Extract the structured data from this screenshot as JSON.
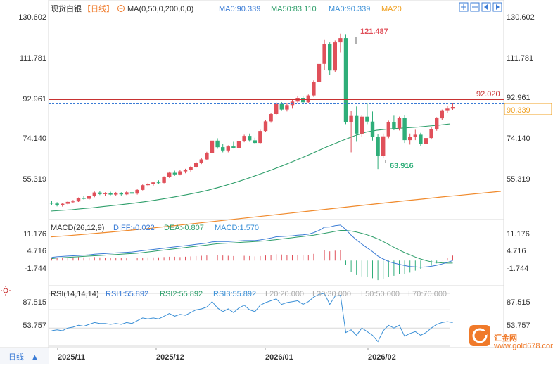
{
  "header": {
    "symbol": "现货白银",
    "period_tag": "【日线】",
    "ma_spec": "MA(0,50,0,200,0,0)",
    "ma_items": [
      "MA0:90.339",
      "MA50:83.110",
      "MA0:90.339",
      "MA20"
    ]
  },
  "toolbar_icons": [
    "zoom-in-icon",
    "zoom-out-icon",
    "scroll-left-icon",
    "scroll-right-icon"
  ],
  "price_axis": [
    "130.602",
    "111.781",
    "92.961",
    "74.140",
    "55.319"
  ],
  "price_marks": {
    "high": "121.487",
    "low": "63.916",
    "ref_line": "92.020",
    "current": "90.339"
  },
  "macd": {
    "title": "MACD(26,12,9)",
    "diff": "DIFF:-0.022",
    "dea": "DEA:-0.807",
    "macd": "MACD:1.570",
    "axis": [
      "11.176",
      "4.716",
      "-1.744"
    ]
  },
  "rsi": {
    "title": "RSI(14,14,14)",
    "items": [
      "RSI1:55.892",
      "RSI2:55.892",
      "RSI3:55.892",
      "L20:20.000",
      "L30:30.000",
      "L50:50.000",
      "L70:70.000"
    ],
    "axis": [
      "87.515",
      "53.757"
    ]
  },
  "time_axis": [
    "2025/11",
    "2025/12",
    "2026/01",
    "2026/02"
  ],
  "period_selector": "日线",
  "period_arrow": "▲",
  "watermark_text": "汇金网",
  "watermark_sub": "www.gold678.com",
  "colors": {
    "up": "#e0505a",
    "down": "#2fae79",
    "ma50": "#2e9e6a",
    "ma200": "#f08a2c",
    "ref_line": "#c83232",
    "current": "#f0a020",
    "diff": "#3a7bd5",
    "dea": "#2e9e6a",
    "rsi": "#3a8fd6",
    "brand": "#f07a2a"
  },
  "chart_data": {
    "type": "candlestick",
    "candles": [
      [
        49.5,
        50.3,
        48.6,
        49.2
      ],
      [
        49.2,
        49.8,
        48.0,
        48.5
      ],
      [
        48.5,
        49.4,
        47.9,
        49.1
      ],
      [
        49.1,
        50.2,
        48.8,
        49.9
      ],
      [
        49.9,
        50.7,
        49.3,
        50.1
      ],
      [
        50.1,
        51.8,
        49.9,
        51.5
      ],
      [
        51.5,
        52.4,
        50.9,
        51.2
      ],
      [
        51.2,
        52.6,
        50.8,
        52.3
      ],
      [
        52.3,
        54.3,
        51.9,
        53.9
      ],
      [
        53.9,
        54.5,
        52.8,
        53.2
      ],
      [
        53.2,
        54.0,
        52.5,
        53.6
      ],
      [
        53.6,
        54.2,
        52.7,
        53.0
      ],
      [
        53.0,
        54.1,
        52.4,
        53.5
      ],
      [
        53.5,
        54.0,
        52.6,
        53.1
      ],
      [
        53.1,
        54.4,
        52.8,
        54.0
      ],
      [
        54.0,
        54.6,
        53.2,
        53.4
      ],
      [
        53.4,
        55.3,
        53.0,
        55.0
      ],
      [
        55.0,
        57.3,
        54.8,
        57.0
      ],
      [
        57.0,
        58.0,
        56.4,
        57.6
      ],
      [
        57.6,
        58.5,
        56.8,
        58.2
      ],
      [
        58.2,
        59.1,
        57.6,
        58.0
      ],
      [
        58.0,
        60.8,
        57.8,
        60.5
      ],
      [
        60.5,
        62.8,
        60.1,
        62.3
      ],
      [
        62.3,
        63.2,
        61.0,
        61.6
      ],
      [
        61.6,
        63.4,
        61.2,
        62.9
      ],
      [
        62.9,
        64.0,
        62.1,
        63.4
      ],
      [
        63.4,
        65.2,
        62.8,
        64.8
      ],
      [
        64.8,
        67.0,
        64.4,
        66.5
      ],
      [
        66.5,
        68.5,
        66.0,
        68.0
      ],
      [
        68.0,
        71.2,
        67.6,
        70.8
      ],
      [
        70.8,
        76.8,
        70.2,
        76.0
      ],
      [
        76.0,
        77.0,
        72.5,
        73.2
      ],
      [
        73.2,
        74.5,
        71.0,
        71.8
      ],
      [
        71.8,
        74.0,
        71.0,
        73.5
      ],
      [
        73.5,
        75.5,
        72.6,
        72.9
      ],
      [
        72.9,
        76.4,
        72.4,
        75.8
      ],
      [
        75.8,
        78.5,
        75.3,
        78.0
      ],
      [
        78.0,
        79.0,
        75.5,
        76.1
      ],
      [
        76.1,
        77.2,
        74.6,
        75.0
      ],
      [
        75.0,
        80.6,
        74.8,
        80.1
      ],
      [
        80.1,
        84.8,
        79.8,
        84.2
      ],
      [
        84.2,
        87.8,
        83.6,
        87.3
      ],
      [
        87.3,
        92.3,
        86.8,
        91.6
      ],
      [
        91.6,
        92.4,
        88.6,
        89.2
      ],
      [
        89.2,
        91.8,
        88.4,
        91.1
      ],
      [
        91.1,
        93.3,
        89.6,
        92.6
      ],
      [
        92.6,
        94.8,
        91.8,
        94.2
      ],
      [
        94.2,
        95.0,
        91.5,
        92.3
      ],
      [
        92.3,
        95.6,
        92.0,
        95.2
      ],
      [
        95.2,
        101.6,
        94.6,
        101.0
      ],
      [
        101.0,
        109.2,
        100.5,
        108.6
      ],
      [
        108.6,
        118.8,
        106.0,
        117.2
      ],
      [
        117.2,
        117.8,
        104.0,
        105.8
      ],
      [
        105.8,
        118.6,
        105.2,
        117.8
      ],
      [
        117.8,
        121.5,
        113.5,
        119.6
      ],
      [
        119.6,
        121.0,
        83.0,
        84.0
      ],
      [
        84.0,
        88.5,
        71.0,
        86.5
      ],
      [
        86.5,
        90.5,
        75.5,
        79.0
      ],
      [
        79.0,
        87.0,
        77.5,
        86.2
      ],
      [
        86.2,
        92.0,
        83.0,
        84.1
      ],
      [
        84.1,
        88.4,
        76.0,
        77.5
      ],
      [
        77.5,
        78.6,
        63.9,
        69.5
      ],
      [
        69.5,
        79.0,
        68.5,
        77.8
      ],
      [
        77.8,
        84.5,
        77.0,
        83.7
      ],
      [
        83.7,
        86.6,
        80.4,
        81.2
      ],
      [
        81.2,
        86.2,
        80.3,
        85.6
      ],
      [
        85.6,
        86.7,
        75.0,
        76.2
      ],
      [
        76.2,
        79.0,
        74.3,
        77.6
      ],
      [
        77.6,
        80.6,
        76.2,
        78.5
      ],
      [
        78.5,
        79.3,
        73.6,
        74.7
      ],
      [
        74.7,
        77.8,
        74.0,
        77.1
      ],
      [
        77.1,
        81.6,
        76.5,
        81.0
      ],
      [
        81.0,
        86.0,
        80.2,
        85.5
      ],
      [
        85.5,
        89.2,
        84.8,
        88.6
      ],
      [
        88.6,
        90.6,
        87.6,
        89.6
      ],
      [
        89.6,
        91.8,
        89.0,
        90.3
      ]
    ],
    "ma50": [
      46.0,
      46.3,
      46.6,
      47.0,
      47.4,
      47.9,
      48.4,
      48.9,
      49.4,
      50.0,
      50.7,
      51.4,
      52.2,
      53.0,
      53.9,
      54.9,
      56.1,
      57.4,
      58.8,
      60.3,
      61.9,
      63.5,
      65.2,
      67.0,
      68.9,
      70.8,
      72.8,
      74.7,
      76.5,
      78.2,
      79.6,
      80.4,
      80.9,
      81.2,
      81.5,
      81.8,
      82.2,
      82.6,
      83.1
    ],
    "ma200": [
      35.0,
      35.6,
      36.3,
      37.0,
      37.8,
      38.6,
      39.5,
      40.4,
      41.3,
      42.2,
      43.1,
      44.0,
      44.9,
      45.8,
      46.7,
      47.6,
      48.5,
      49.4,
      50.3,
      51.1,
      52.0,
      52.8,
      53.6,
      54.4
    ],
    "macd_hist": [
      0.8,
      0.9,
      1.0,
      1.0,
      1.1,
      1.1,
      1.0,
      1.0,
      1.1,
      1.0,
      0.9,
      0.8,
      0.9,
      0.8,
      0.7,
      0.7,
      0.8,
      0.9,
      1.0,
      1.0,
      1.0,
      1.1,
      1.2,
      1.2,
      1.1,
      1.2,
      1.3,
      1.4,
      1.5,
      1.6,
      1.9,
      1.8,
      1.6,
      1.5,
      1.4,
      1.4,
      1.5,
      1.4,
      1.3,
      1.4,
      1.6,
      1.8,
      2.0,
      1.9,
      1.8,
      1.8,
      1.8,
      1.7,
      1.8,
      2.1,
      2.6,
      3.2,
      2.9,
      3.1,
      3.2,
      -1.5,
      -3.5,
      -4.6,
      -5.0,
      -5.2,
      -5.6,
      -6.2,
      -5.8,
      -5.2,
      -4.8,
      -4.3,
      -4.2,
      -3.8,
      -3.2,
      -2.8,
      -2.2,
      -1.6,
      -0.9,
      0.0,
      0.8,
      1.57
    ],
    "macd_diff": [
      1.0,
      1.2,
      1.3,
      1.4,
      1.5,
      1.6,
      1.7,
      1.8,
      2.0,
      2.1,
      2.2,
      2.3,
      2.4,
      2.5,
      2.6,
      2.7,
      2.9,
      3.1,
      3.3,
      3.5,
      3.7,
      3.9,
      4.1,
      4.3,
      4.5,
      4.7,
      4.9,
      5.1,
      5.3,
      5.5,
      5.9,
      6.0,
      6.0,
      6.0,
      6.1,
      6.2,
      6.3,
      6.3,
      6.3,
      6.5,
      6.8,
      7.1,
      7.5,
      7.6,
      7.7,
      7.8,
      8.0,
      8.1,
      8.3,
      8.8,
      9.5,
      10.5,
      10.6,
      11.0,
      11.2,
      9.8,
      8.0,
      6.5,
      5.2,
      4.0,
      2.8,
      1.4,
      0.5,
      -0.3,
      -0.8,
      -1.2,
      -1.6,
      -1.9,
      -2.0,
      -2.1,
      -2.0,
      -1.8,
      -1.5,
      -1.1,
      -0.6,
      -0.022
    ],
    "macd_dea": [
      0.6,
      0.8,
      0.9,
      1.0,
      1.1,
      1.2,
      1.3,
      1.4,
      1.5,
      1.6,
      1.7,
      1.8,
      1.9,
      2.0,
      2.1,
      2.2,
      2.3,
      2.5,
      2.7,
      2.9,
      3.1,
      3.3,
      3.5,
      3.7,
      3.9,
      4.1,
      4.3,
      4.5,
      4.7,
      4.9,
      5.1,
      5.3,
      5.4,
      5.5,
      5.6,
      5.7,
      5.8,
      5.9,
      6.0,
      6.1,
      6.2,
      6.4,
      6.6,
      6.8,
      7.0,
      7.2,
      7.4,
      7.6,
      7.8,
      8.0,
      8.3,
      8.6,
      8.9,
      9.2,
      9.5,
      9.5,
      9.3,
      9.0,
      8.6,
      8.1,
      7.5,
      6.8,
      6.0,
      5.1,
      4.2,
      3.3,
      2.5,
      1.8,
      1.1,
      0.5,
      0.0,
      -0.4,
      -0.6,
      -0.75,
      -0.8,
      -0.807
    ],
    "rsi": [
      47,
      48,
      47,
      50,
      51,
      53,
      52,
      54,
      56,
      55,
      55,
      54,
      55,
      54,
      56,
      55,
      58,
      61,
      60,
      61,
      60,
      63,
      66,
      63,
      65,
      64,
      67,
      70,
      71,
      73,
      79,
      72,
      68,
      71,
      67,
      72,
      75,
      70,
      68,
      75,
      78,
      80,
      82,
      76,
      78,
      79,
      80,
      76,
      79,
      84,
      87,
      88,
      76,
      85,
      86,
      45,
      48,
      42,
      50,
      46,
      42,
      35,
      47,
      53,
      50,
      53,
      41,
      44,
      46,
      42,
      45,
      50,
      54,
      56,
      57,
      55.9
    ],
    "ylim_price": [
      43,
      134
    ],
    "ylim_macd": [
      -7.5,
      12.5
    ],
    "ylim_rsi": [
      30,
      95
    ]
  }
}
